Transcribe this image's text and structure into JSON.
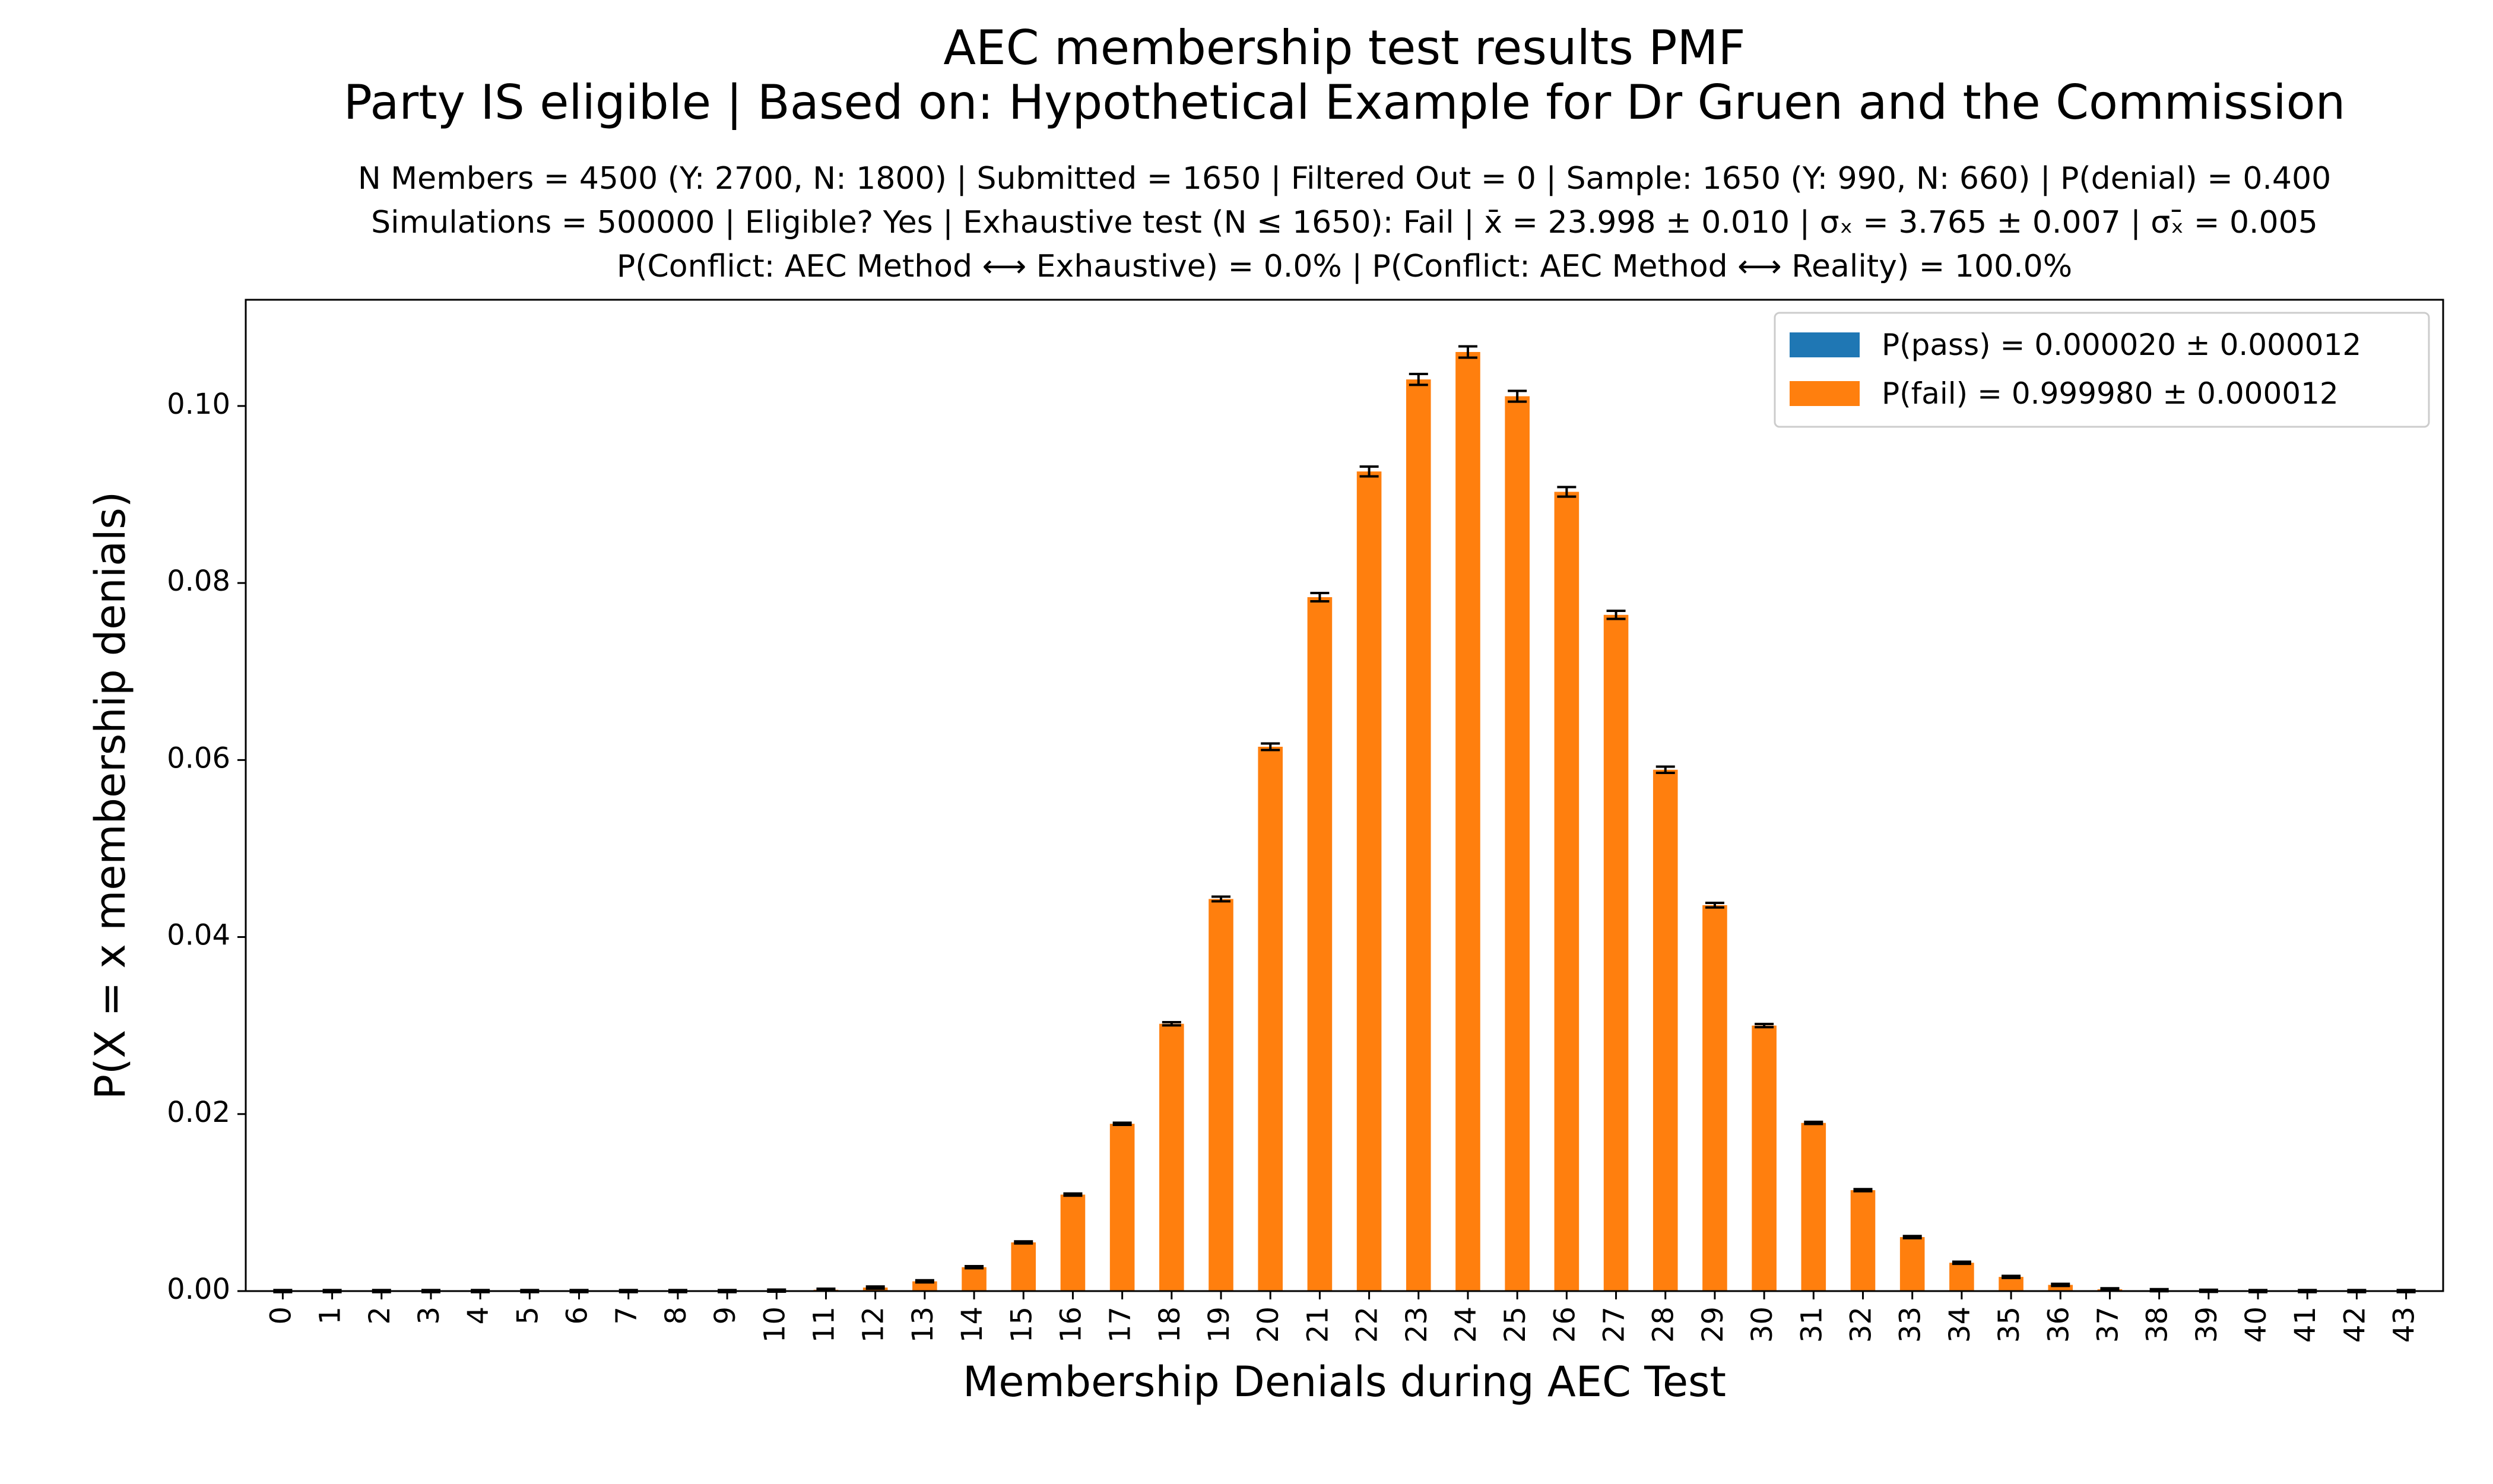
{
  "chart_data": {
    "type": "bar",
    "title_line1": "AEC membership test results PMF",
    "title_line2": "Party IS eligible | Based on: Hypothetical Example for Dr Gruen and the Commission",
    "info_line1": "N Members = 4500 (Y: 2700, N: 1800) | Submitted = 1650 | Filtered Out = 0 | Sample: 1650 (Y: 990, N: 660) | P(denial) = 0.400",
    "info_line2": "Simulations = 500000 | Eligible? Yes | Exhaustive test (N ≤ 1650): Fail | x̄ = 23.998 ± 0.010 | σₓ = 3.765 ± 0.007 | σₓ̄ = 0.005",
    "info_line3": "P(Conflict: AEC Method ⟷ Exhaustive) = 0.0% | P(Conflict: AEC Method ⟷ Reality) = 100.0%",
    "xlabel": "Membership Denials during AEC Test",
    "ylabel": "P(X = x membership denials)",
    "ylim": [
      0,
      0.112
    ],
    "yticks": [
      "0.00",
      "0.02",
      "0.04",
      "0.06",
      "0.08",
      "0.10"
    ],
    "ytick_values": [
      0,
      0.02,
      0.04,
      0.06,
      0.08,
      0.1
    ],
    "categories": [
      "0",
      "1",
      "2",
      "3",
      "4",
      "5",
      "6",
      "7",
      "8",
      "9",
      "10",
      "11",
      "12",
      "13",
      "14",
      "15",
      "16",
      "17",
      "18",
      "19",
      "20",
      "21",
      "22",
      "23",
      "24",
      "25",
      "26",
      "27",
      "28",
      "29",
      "30",
      "31",
      "32",
      "33",
      "34",
      "35",
      "36",
      "37",
      "38",
      "39",
      "40",
      "41",
      "42",
      "43"
    ],
    "series": [
      {
        "name": "P(pass) = 0.000020 ± 0.000012",
        "color": "#1f77b4",
        "values": [
          0,
          0,
          0,
          0,
          0,
          0,
          0,
          0,
          0,
          0,
          0,
          0,
          0,
          0,
          0,
          0,
          0,
          0,
          0,
          0,
          0,
          0,
          0,
          0,
          0,
          0,
          0,
          0,
          0,
          0,
          0,
          0,
          0,
          0,
          0,
          0,
          0,
          0,
          0,
          0,
          0,
          0,
          0,
          0
        ]
      },
      {
        "name": "P(fail) = 0.999980 ± 0.000012",
        "color": "#ff7f0e",
        "values": [
          0,
          0,
          0,
          0,
          0,
          0,
          0,
          0,
          0,
          0,
          5e-05,
          0.00015,
          0.0004,
          0.0011,
          0.0027,
          0.0055,
          0.0109,
          0.0189,
          0.0302,
          0.0443,
          0.0615,
          0.0784,
          0.0926,
          0.103,
          0.1061,
          0.1011,
          0.0903,
          0.0764,
          0.0589,
          0.0436,
          0.03,
          0.019,
          0.0114,
          0.0061,
          0.0032,
          0.0016,
          0.0007,
          0.0002,
          0.0001,
          3e-05,
          0,
          0,
          0,
          0
        ]
      }
    ],
    "legend_placement": "top-right",
    "grid": false,
    "error_bars": true
  }
}
